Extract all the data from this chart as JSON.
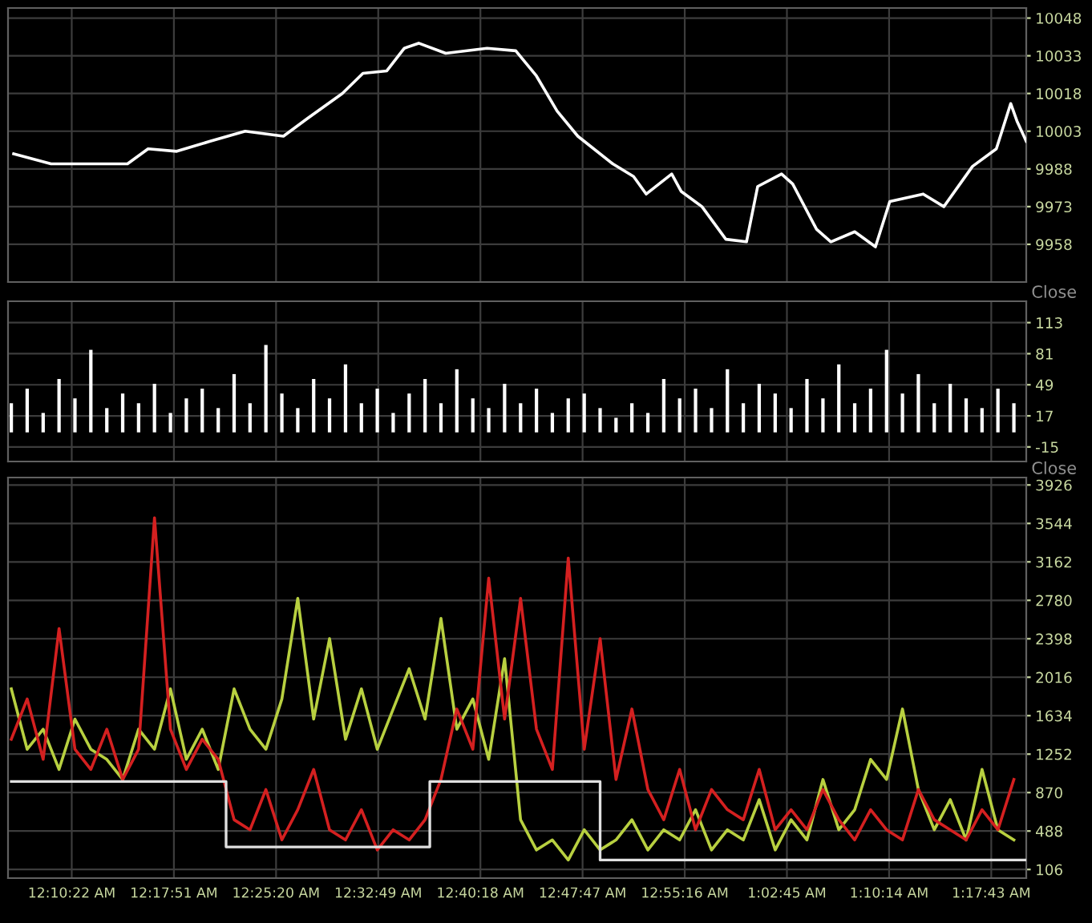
{
  "chart_data": [
    {
      "type": "line",
      "x": [
        0.1019,
        0.1475,
        0.2408,
        0.266,
        0.301,
        0.3418,
        0.3845,
        0.4312,
        0.4603,
        0.503,
        0.5283,
        0.5574,
        0.5788,
        0.5963,
        0.6293,
        0.6798,
        0.7148,
        0.74,
        0.7653,
        0.7906,
        0.8333,
        0.8586,
        0.8741,
        0.9052,
        0.9169,
        0.9421,
        0.9713,
        0.9965,
        1.0101,
        1.0393,
        1.0529,
        1.082,
        1.0995,
        1.1286,
        1.1539,
        1.1714,
        1.2122,
        1.2374,
        1.2724,
        1.3015,
        1.319,
        1.3267,
        1.338
      ],
      "series": [
        {
          "color": "#ffffff",
          "values": [
            9994,
            9990,
            9990,
            9996,
            9995,
            9999,
            10003,
            10001,
            10008,
            10018,
            10026,
            10027,
            10036,
            10038,
            10034,
            10036,
            10035,
            10025,
            10011,
            10001,
            9990,
            9985,
            9978,
            9986,
            9979,
            9973,
            9960,
            9959,
            9981,
            9986,
            9982,
            9964,
            9959,
            9963,
            9957,
            9975,
            9978,
            9973,
            9989,
            9996,
            10014,
            10007,
            9999
          ]
        }
      ],
      "xlim": [
        0.095,
        1.338
      ],
      "ylim": [
        9943,
        10052
      ],
      "yticks": [
        9958,
        9973,
        9988,
        10003,
        10018,
        10033,
        10048
      ],
      "grid": true,
      "tick_labels": "y"
    },
    {
      "type": "bar",
      "annotations": [
        "Close"
      ],
      "x": [
        0.099,
        0.1184,
        0.1379,
        0.1573,
        0.1767,
        0.1961,
        0.2156,
        0.235,
        0.2544,
        0.2738,
        0.2933,
        0.3127,
        0.3321,
        0.3516,
        0.371,
        0.3904,
        0.4098,
        0.4293,
        0.4487,
        0.4681,
        0.4875,
        0.507,
        0.5264,
        0.5458,
        0.5652,
        0.5847,
        0.6041,
        0.6235,
        0.6429,
        0.6624,
        0.6818,
        0.7012,
        0.7207,
        0.7401,
        0.7595,
        0.7789,
        0.7984,
        0.8178,
        0.8372,
        0.8566,
        0.8761,
        0.8955,
        0.9149,
        0.9343,
        0.9538,
        0.9732,
        0.9926,
        1.012,
        1.0315,
        1.0509,
        1.0703,
        1.0898,
        1.1092,
        1.1286,
        1.148,
        1.1675,
        1.1869,
        1.2063,
        1.2257,
        1.2452,
        1.2646,
        1.284,
        1.3034,
        1.3229
      ],
      "series": [
        {
          "color": "#ffffff",
          "values": [
            30,
            45,
            20,
            55,
            35,
            85,
            25,
            40,
            30,
            50,
            20,
            35,
            45,
            25,
            60,
            30,
            90,
            40,
            25,
            55,
            35,
            70,
            30,
            45,
            20,
            40,
            55,
            30,
            65,
            35,
            25,
            50,
            30,
            45,
            20,
            35,
            40,
            25,
            15,
            30,
            20,
            55,
            35,
            45,
            25,
            65,
            30,
            50,
            40,
            25,
            55,
            35,
            70,
            30,
            45,
            85,
            40,
            60,
            30,
            50,
            35,
            25,
            45,
            30
          ]
        }
      ],
      "xlim": [
        0.095,
        1.338
      ],
      "ylim": [
        -30,
        135
      ],
      "yticks": [
        -15,
        17,
        49,
        81,
        113
      ],
      "grid": true,
      "tick_labels": "y"
    },
    {
      "type": "line",
      "annotations": [
        "Close"
      ],
      "x": [
        0.099,
        0.1184,
        0.1379,
        0.1573,
        0.1767,
        0.1961,
        0.2156,
        0.235,
        0.2544,
        0.2738,
        0.2933,
        0.3127,
        0.3321,
        0.3516,
        0.371,
        0.3904,
        0.4098,
        0.4293,
        0.4487,
        0.4681,
        0.4875,
        0.507,
        0.5264,
        0.5458,
        0.5652,
        0.5847,
        0.6041,
        0.6235,
        0.6429,
        0.6624,
        0.6818,
        0.7012,
        0.7207,
        0.7401,
        0.7595,
        0.7789,
        0.7984,
        0.8178,
        0.8372,
        0.8566,
        0.8761,
        0.8955,
        0.9149,
        0.9343,
        0.9538,
        0.9732,
        0.9926,
        1.012,
        1.0315,
        1.0509,
        1.0703,
        1.0898,
        1.1092,
        1.1286,
        1.148,
        1.1675,
        1.1869,
        1.2063,
        1.2257,
        1.2452,
        1.2646,
        1.284,
        1.3034,
        1.3229
      ],
      "series": [
        {
          "color": "#b8d040",
          "values": [
            1900,
            1300,
            1500,
            1100,
            1600,
            1300,
            1200,
            1000,
            1500,
            1300,
            1900,
            1200,
            1500,
            1100,
            1900,
            1500,
            1300,
            1800,
            2800,
            1600,
            2400,
            1400,
            1900,
            1300,
            1700,
            2100,
            1600,
            2600,
            1500,
            1800,
            1200,
            2200,
            600,
            300,
            400,
            200,
            500,
            300,
            400,
            600,
            300,
            500,
            400,
            700,
            300,
            500,
            400,
            800,
            300,
            600,
            400,
            1000,
            500,
            700,
            1200,
            1000,
            1700,
            900,
            500,
            800,
            400,
            1100,
            500,
            400
          ]
        },
        {
          "color": "#d42020",
          "values": [
            1400,
            1800,
            1200,
            2500,
            1300,
            1100,
            1500,
            1000,
            1300,
            3600,
            1500,
            1100,
            1400,
            1200,
            600,
            500,
            900,
            400,
            700,
            1100,
            500,
            400,
            700,
            300,
            500,
            400,
            600,
            1000,
            1700,
            1300,
            3000,
            1600,
            2800,
            1500,
            1100,
            3200,
            1300,
            2400,
            1000,
            1700,
            900,
            600,
            1100,
            500,
            900,
            700,
            600,
            1100,
            500,
            700,
            500,
            900,
            600,
            400,
            700,
            500,
            400,
            900,
            600,
            500,
            400,
            700,
            500,
            1000
          ]
        },
        {
          "type": "step",
          "color": "#e0e0e0",
          "x": [
            0.099,
            0.3612,
            0.6099,
            0.8178,
            1.338
          ],
          "values": [
            980,
            330,
            980,
            200,
            200
          ]
        }
      ],
      "xlim": [
        0.095,
        1.338
      ],
      "ylim": [
        20,
        4000
      ],
      "yticks": [
        106,
        488,
        870,
        1252,
        1634,
        2016,
        2398,
        2780,
        3162,
        3544,
        3926
      ],
      "xticks": [
        {
          "value": 0.17278,
          "label": "12:10:22 AM"
        },
        {
          "value": 0.2975,
          "label": "12:17:51 AM"
        },
        {
          "value": 0.42222,
          "label": "12:25:20 AM"
        },
        {
          "value": 0.54694,
          "label": "12:32:49 AM"
        },
        {
          "value": 0.67167,
          "label": "12:40:18 AM"
        },
        {
          "value": 0.79639,
          "label": "12:47:47 AM"
        },
        {
          "value": 0.92111,
          "label": "12:55:16 AM"
        },
        {
          "value": 1.04583,
          "label": "1:02:45 AM"
        },
        {
          "value": 1.17056,
          "label": "1:10:14 AM"
        },
        {
          "value": 1.29528,
          "label": "1:17:43 AM"
        }
      ],
      "grid": true
    }
  ]
}
